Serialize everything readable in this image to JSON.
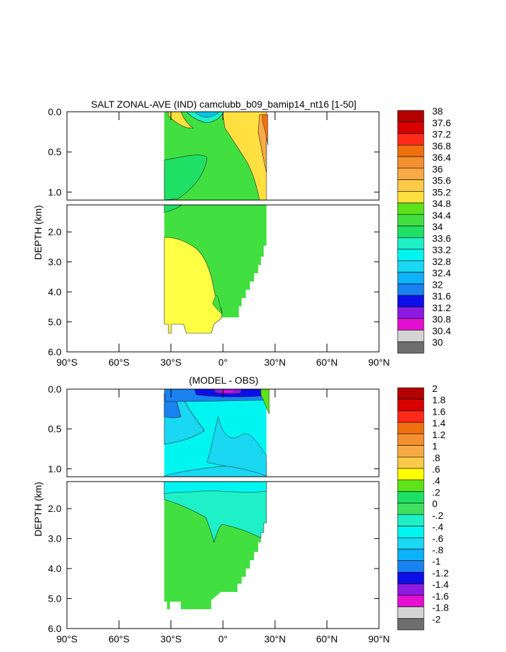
{
  "chart_data": [
    {
      "type": "heatmap",
      "title": "SALT ZONAL-AVE (IND) camclubb_b09_bamip14_nt16 [1-50]",
      "ylabel": "DEPTH (km)",
      "xlabel": "",
      "x_ticks": [
        "90°S",
        "60°S",
        "30°S",
        "0°",
        "30°N",
        "60°N",
        "90°N"
      ],
      "x_tick_values": [
        -90,
        -60,
        -30,
        0,
        30,
        60,
        90
      ],
      "y_ticks_upper": [
        "0.0",
        "0.5",
        "1.0"
      ],
      "y_ticks_upper_values": [
        0,
        0.5,
        1.0
      ],
      "y_ticks_lower": [
        "2.0",
        "3.0",
        "4.0",
        "5.0",
        "6.0"
      ],
      "y_ticks_lower_values": [
        2,
        3,
        4,
        5,
        6
      ],
      "xlim": [
        -90,
        90
      ],
      "ylim_upper": [
        0,
        1.1
      ],
      "ylim_lower": [
        1.1,
        6.0
      ],
      "colorbar_labels": [
        "38",
        "37.6",
        "37.2",
        "36.8",
        "36.4",
        "36",
        "35.6",
        "35.2",
        "34.8",
        "34.4",
        "34",
        "33.6",
        "33.2",
        "32.8",
        "32.4",
        "32",
        "31.6",
        "31.2",
        "30.8",
        "30.4",
        "30"
      ],
      "colorbar_colors": [
        "#b40000",
        "#d80000",
        "#ff2a1a",
        "#f07010",
        "#f59030",
        "#f8ab45",
        "#fcc948",
        "#ffe040",
        "#5ee21a",
        "#41e040",
        "#1ee064",
        "#1ef0c8",
        "#00f5f0",
        "#1ad7f2",
        "#0db2f8",
        "#1a82f0",
        "#0b0fe8",
        "#8c1ae0",
        "#e40fd0",
        "#d4d4d4",
        "#6e6e6e"
      ],
      "regions": [
        {
          "name": "deep-fresh-green",
          "value": 34.2
        },
        {
          "name": "surface-green",
          "value": 34.6
        },
        {
          "name": "deep-salty-yellow",
          "value": 34.9
        },
        {
          "name": "north-arabian-sea-salty",
          "value": 36.6
        }
      ]
    },
    {
      "type": "heatmap",
      "title": "(MODEL - OBS)",
      "ylabel": "DEPTH (km)",
      "xlabel": "",
      "x_ticks": [
        "90°S",
        "60°S",
        "30°S",
        "0°",
        "30°N",
        "60°N",
        "90°N"
      ],
      "x_tick_values": [
        -90,
        -60,
        -30,
        0,
        30,
        60,
        90
      ],
      "y_ticks_upper": [
        "0.0",
        "0.5",
        "1.0"
      ],
      "y_ticks_upper_values": [
        0,
        0.5,
        1.0
      ],
      "y_ticks_lower": [
        "2.0",
        "3.0",
        "4.0",
        "5.0",
        "6.0"
      ],
      "y_ticks_lower_values": [
        2,
        3,
        4,
        5,
        6
      ],
      "xlim": [
        -90,
        90
      ],
      "ylim_upper": [
        0,
        1.1
      ],
      "ylim_lower": [
        1.1,
        6.0
      ],
      "colorbar_labels": [
        "2",
        "1.8",
        "1.6",
        "1.4",
        "1.2",
        "1",
        ".8",
        ".6",
        ".4",
        ".2",
        "0",
        "-.2",
        "-.4",
        "-.6",
        "-.8",
        "-1",
        "-1.2",
        "-1.4",
        "-1.6",
        "-1.8",
        "-2"
      ],
      "colorbar_colors": [
        "#b40000",
        "#d80000",
        "#ff2a1a",
        "#f07010",
        "#f59030",
        "#f8ab45",
        "#fcc948",
        "#ffff00",
        "#5ee21a",
        "#1ee064",
        "#41e060",
        "#1ef0c8",
        "#00f5f0",
        "#1ad7f2",
        "#0db2f8",
        "#1a82f0",
        "#0b0fe8",
        "#8c1ae0",
        "#e40fd0",
        "#d4d4d4",
        "#6e6e6e"
      ],
      "regions": [
        {
          "name": "upper-bias-cyan",
          "value": -0.3
        },
        {
          "name": "deep-bias-green",
          "value": 0.1
        },
        {
          "name": "surface-bias-blue",
          "value": -0.9
        },
        {
          "name": "surface-bias-purple",
          "value": -1.4
        }
      ]
    }
  ]
}
